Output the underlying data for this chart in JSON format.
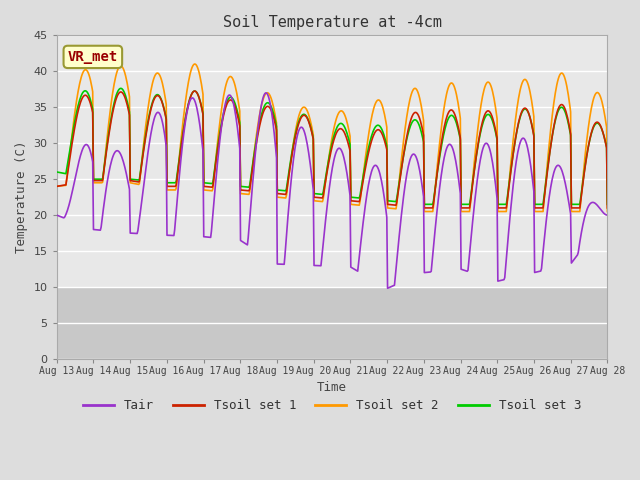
{
  "title": "Soil Temperature at -4cm",
  "xlabel": "Time",
  "ylabel": "Temperature (C)",
  "ylim": [
    0,
    45
  ],
  "yticks": [
    0,
    5,
    10,
    15,
    20,
    25,
    30,
    35,
    40,
    45
  ],
  "colors": {
    "Tair": "#9933cc",
    "Tsoil1": "#cc2200",
    "Tsoil2": "#ff9900",
    "Tsoil3": "#00cc00"
  },
  "legend_labels": [
    "Tair",
    "Tsoil set 1",
    "Tsoil set 2",
    "Tsoil set 3"
  ],
  "annotation_text": "VR_met",
  "annotation_color": "#990000",
  "annotation_bg": "#ffffcc",
  "annotation_edge": "#999933",
  "fig_bg": "#dddddd",
  "plot_bg": "#e8e8e8",
  "band_upper_bg": "#e8e8e8",
  "band_lower_bg": "#d0d0d0",
  "grid_color": "#ffffff",
  "line_width": 1.2,
  "xtick_labels": [
    "Aug 13",
    "Aug 14",
    "Aug 15",
    "Aug 16",
    "Aug 17",
    "Aug 18",
    "Aug 19",
    "Aug 20",
    "Aug 21",
    "Aug 22",
    "Aug 23",
    "Aug 24",
    "Aug 25",
    "Aug 26",
    "Aug 27",
    "Aug 28"
  ],
  "font_family": "monospace"
}
